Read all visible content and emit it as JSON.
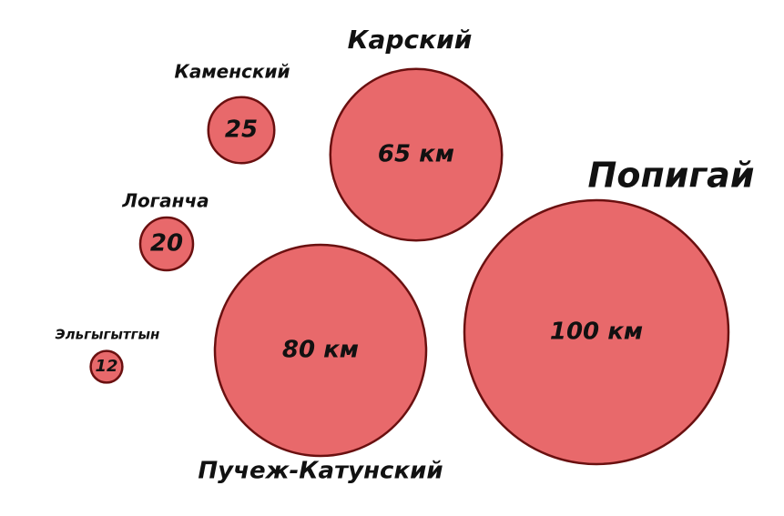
{
  "chart_data": {
    "type": "bubble",
    "categories": [
      "Попигай",
      "Пучеж-Катунский",
      "Карский",
      "Каменский",
      "Логанча",
      "Эльгыгытгын"
    ],
    "values": [
      100,
      80,
      65,
      25,
      20,
      12
    ],
    "value_labels": [
      "100 км",
      "80 км",
      "65 км",
      "25",
      "20",
      "12"
    ],
    "color": "#e8696b"
  }
}
